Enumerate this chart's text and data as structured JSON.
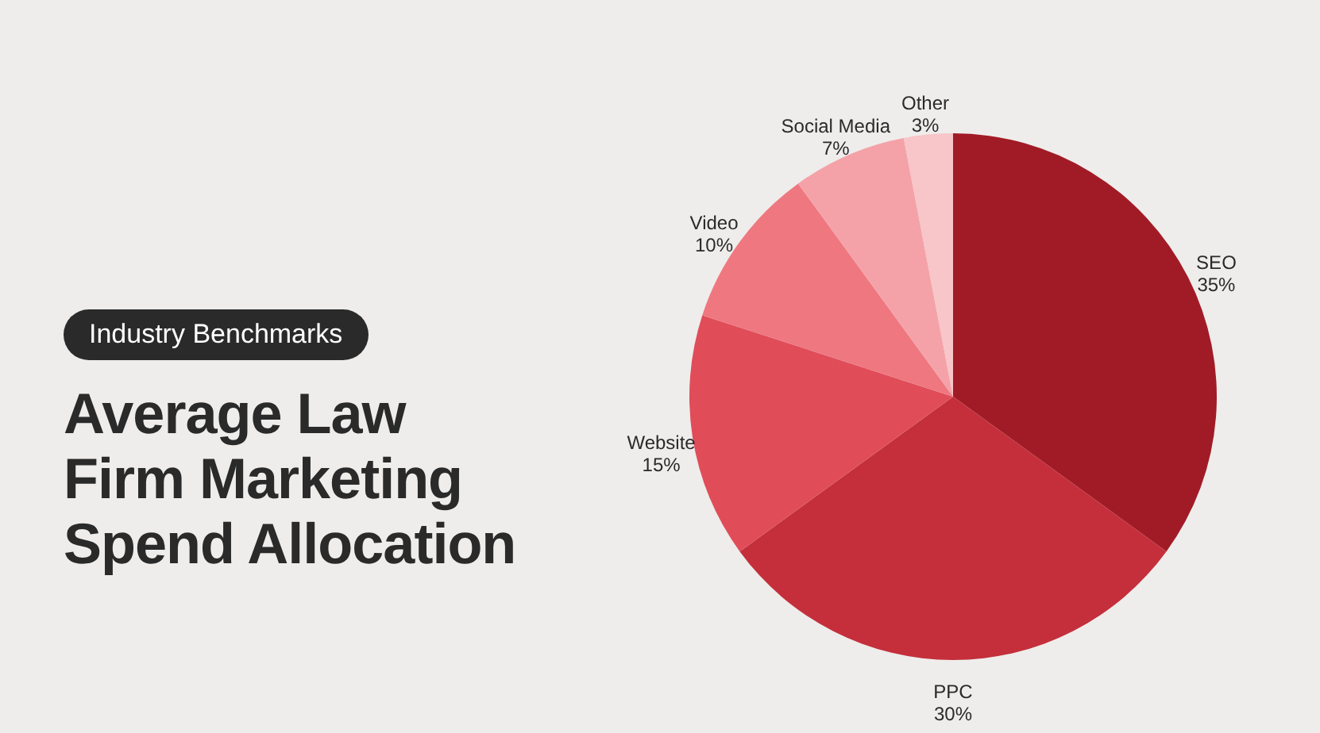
{
  "chart_data": {
    "type": "pie",
    "title": "Average Law Firm Marketing Spend Allocation",
    "subtitle": "Industry Benchmarks",
    "categories": [
      "SEO",
      "PPC",
      "Website",
      "Video",
      "Social Media",
      "Other"
    ],
    "values": [
      35,
      30,
      15,
      10,
      7,
      3
    ],
    "value_labels": [
      "35%",
      "30%",
      "15%",
      "10%",
      "7%",
      "3%"
    ],
    "colors": [
      "#a11b26",
      "#c42f3b",
      "#e04d59",
      "#ef7780",
      "#f4a2a8",
      "#f8c5c8"
    ],
    "legend": false
  }
}
